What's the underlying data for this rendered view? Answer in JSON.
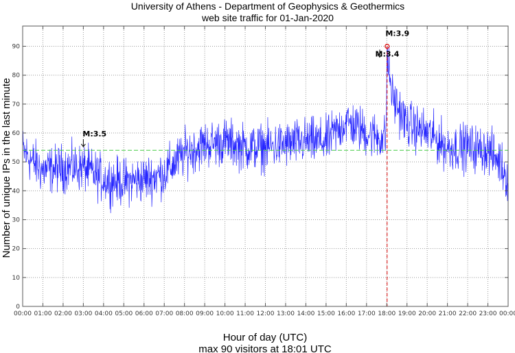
{
  "chart_data": {
    "type": "line",
    "title": "University of Athens - Department of Geophysics & Geothermics",
    "subtitle": "web site traffic for 01-Jan-2020",
    "xlabel": "Hour of day (UTC)",
    "footer": "max 90 visitors at 18:01 UTC",
    "ylabel": "Number of unique IPs in the last minute",
    "xlim": [
      0,
      24
    ],
    "ylim": [
      0,
      97
    ],
    "grid": true,
    "x_tick_labels": [
      "00:00",
      "01:00",
      "02:00",
      "03:00",
      "04:00",
      "05:00",
      "06:00",
      "07:00",
      "08:00",
      "09:00",
      "10:00",
      "11:00",
      "12:00",
      "13:00",
      "14:00",
      "15:00",
      "16:00",
      "17:00",
      "18:00",
      "19:00",
      "20:00",
      "21:00",
      "22:00",
      "23:00",
      "00:00"
    ],
    "y_ticks": [
      0,
      10,
      20,
      30,
      40,
      50,
      60,
      70,
      80,
      90
    ],
    "series": [
      {
        "name": "unique IPs per minute",
        "color": "#0000ff",
        "resolution": "1 minute",
        "hourly_baseline_hours": [
          0,
          0.5,
          1,
          2,
          3,
          4,
          5,
          6,
          7,
          8,
          9,
          10,
          11,
          12,
          13,
          14,
          15,
          16,
          17,
          17.95,
          18.02,
          18.3,
          19,
          20,
          21,
          22,
          23,
          23.6,
          24
        ],
        "hourly_baseline_values": [
          54,
          50,
          47,
          48,
          48,
          44,
          43,
          44,
          46,
          53,
          56,
          57,
          55,
          55,
          56,
          57,
          57,
          64,
          60,
          58,
          86,
          72,
          63,
          60,
          55,
          55,
          54,
          50,
          44
        ],
        "noise_amplitude": 5
      }
    ],
    "mean_line": {
      "value": 54,
      "color": "#44cc44"
    },
    "max": {
      "time_hours": 18.017,
      "value": 90,
      "color": "#dd0000"
    },
    "annotations": [
      {
        "label": "M:3.5",
        "time_hours": 3.0,
        "value": 55
      },
      {
        "label": "M:3.4",
        "time_hours": 17.65,
        "value": 86
      },
      {
        "label": "M:3.9",
        "time_hours": 18.017,
        "value": 90
      }
    ]
  }
}
